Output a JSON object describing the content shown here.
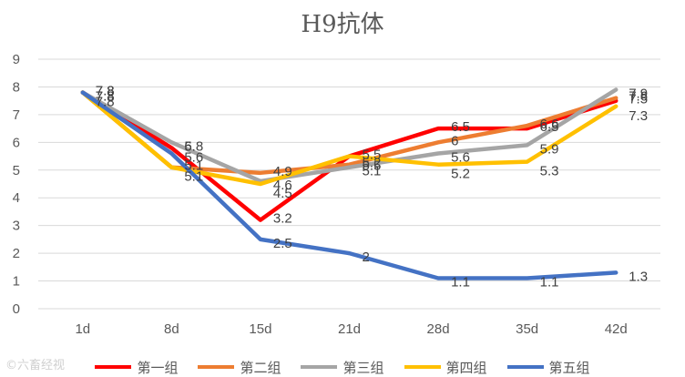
{
  "chart_data": {
    "type": "line",
    "title": "H9抗体",
    "categories": [
      "1d",
      "8d",
      "15d",
      "21d",
      "28d",
      "35d",
      "42d"
    ],
    "ylim": [
      0,
      9
    ],
    "yticks": [
      0,
      1,
      2,
      3,
      4,
      5,
      6,
      7,
      8,
      9
    ],
    "grid": true,
    "legend_position": "bottom",
    "series": [
      {
        "name": "第一组",
        "color": "#FF0000",
        "values": [
          7.8,
          5.8,
          3.2,
          5.5,
          6.5,
          6.5,
          7.5
        ]
      },
      {
        "name": "第二组",
        "color": "#ED7D31",
        "values": [
          7.8,
          5.1,
          4.9,
          5.2,
          6.0,
          6.6,
          7.6
        ]
      },
      {
        "name": "第三组",
        "color": "#A5A5A5",
        "values": [
          7.8,
          6.0,
          4.6,
          5.1,
          5.6,
          5.9,
          7.9
        ]
      },
      {
        "name": "第四组",
        "color": "#FFC000",
        "values": [
          7.8,
          5.1,
          4.5,
          5.5,
          5.2,
          5.3,
          7.3
        ]
      },
      {
        "name": "第五组",
        "color": "#4472C4",
        "values": [
          7.8,
          5.6,
          2.5,
          2.0,
          1.1,
          1.1,
          1.3
        ]
      }
    ]
  },
  "watermark_text": "©六畜经视"
}
